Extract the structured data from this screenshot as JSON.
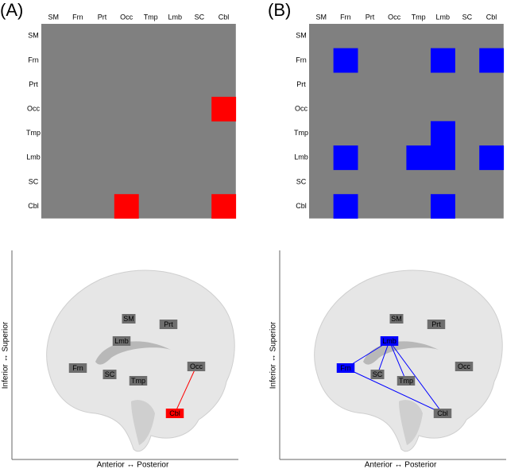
{
  "regions": [
    "SM",
    "Frn",
    "Prt",
    "Occ",
    "Tmp",
    "Lmb",
    "SC",
    "Cbl"
  ],
  "panels": [
    {
      "label": "(A)",
      "color": "#ff0000",
      "cells": [
        [
          3,
          7
        ],
        [
          7,
          3
        ],
        [
          7,
          7
        ]
      ],
      "edges": [
        [
          3,
          7
        ]
      ],
      "highlight": [
        7
      ],
      "x_label": "Anterior ↔ Posterior",
      "y_label": "Inferior ↔ Superior"
    },
    {
      "label": "(B)",
      "color": "#0000ff",
      "cells": [
        [
          1,
          1
        ],
        [
          1,
          5
        ],
        [
          1,
          7
        ],
        [
          4,
          5
        ],
        [
          5,
          1
        ],
        [
          5,
          4
        ],
        [
          5,
          5
        ],
        [
          5,
          7
        ],
        [
          7,
          1
        ],
        [
          7,
          5
        ]
      ],
      "edges": [
        [
          1,
          5
        ],
        [
          1,
          7
        ],
        [
          5,
          4
        ],
        [
          5,
          7
        ],
        [
          5,
          6
        ]
      ],
      "highlight": [
        1,
        5
      ],
      "x_label": "Anterior ↔ Posterior",
      "y_label": "Inferior ↔ Superior"
    }
  ]
}
